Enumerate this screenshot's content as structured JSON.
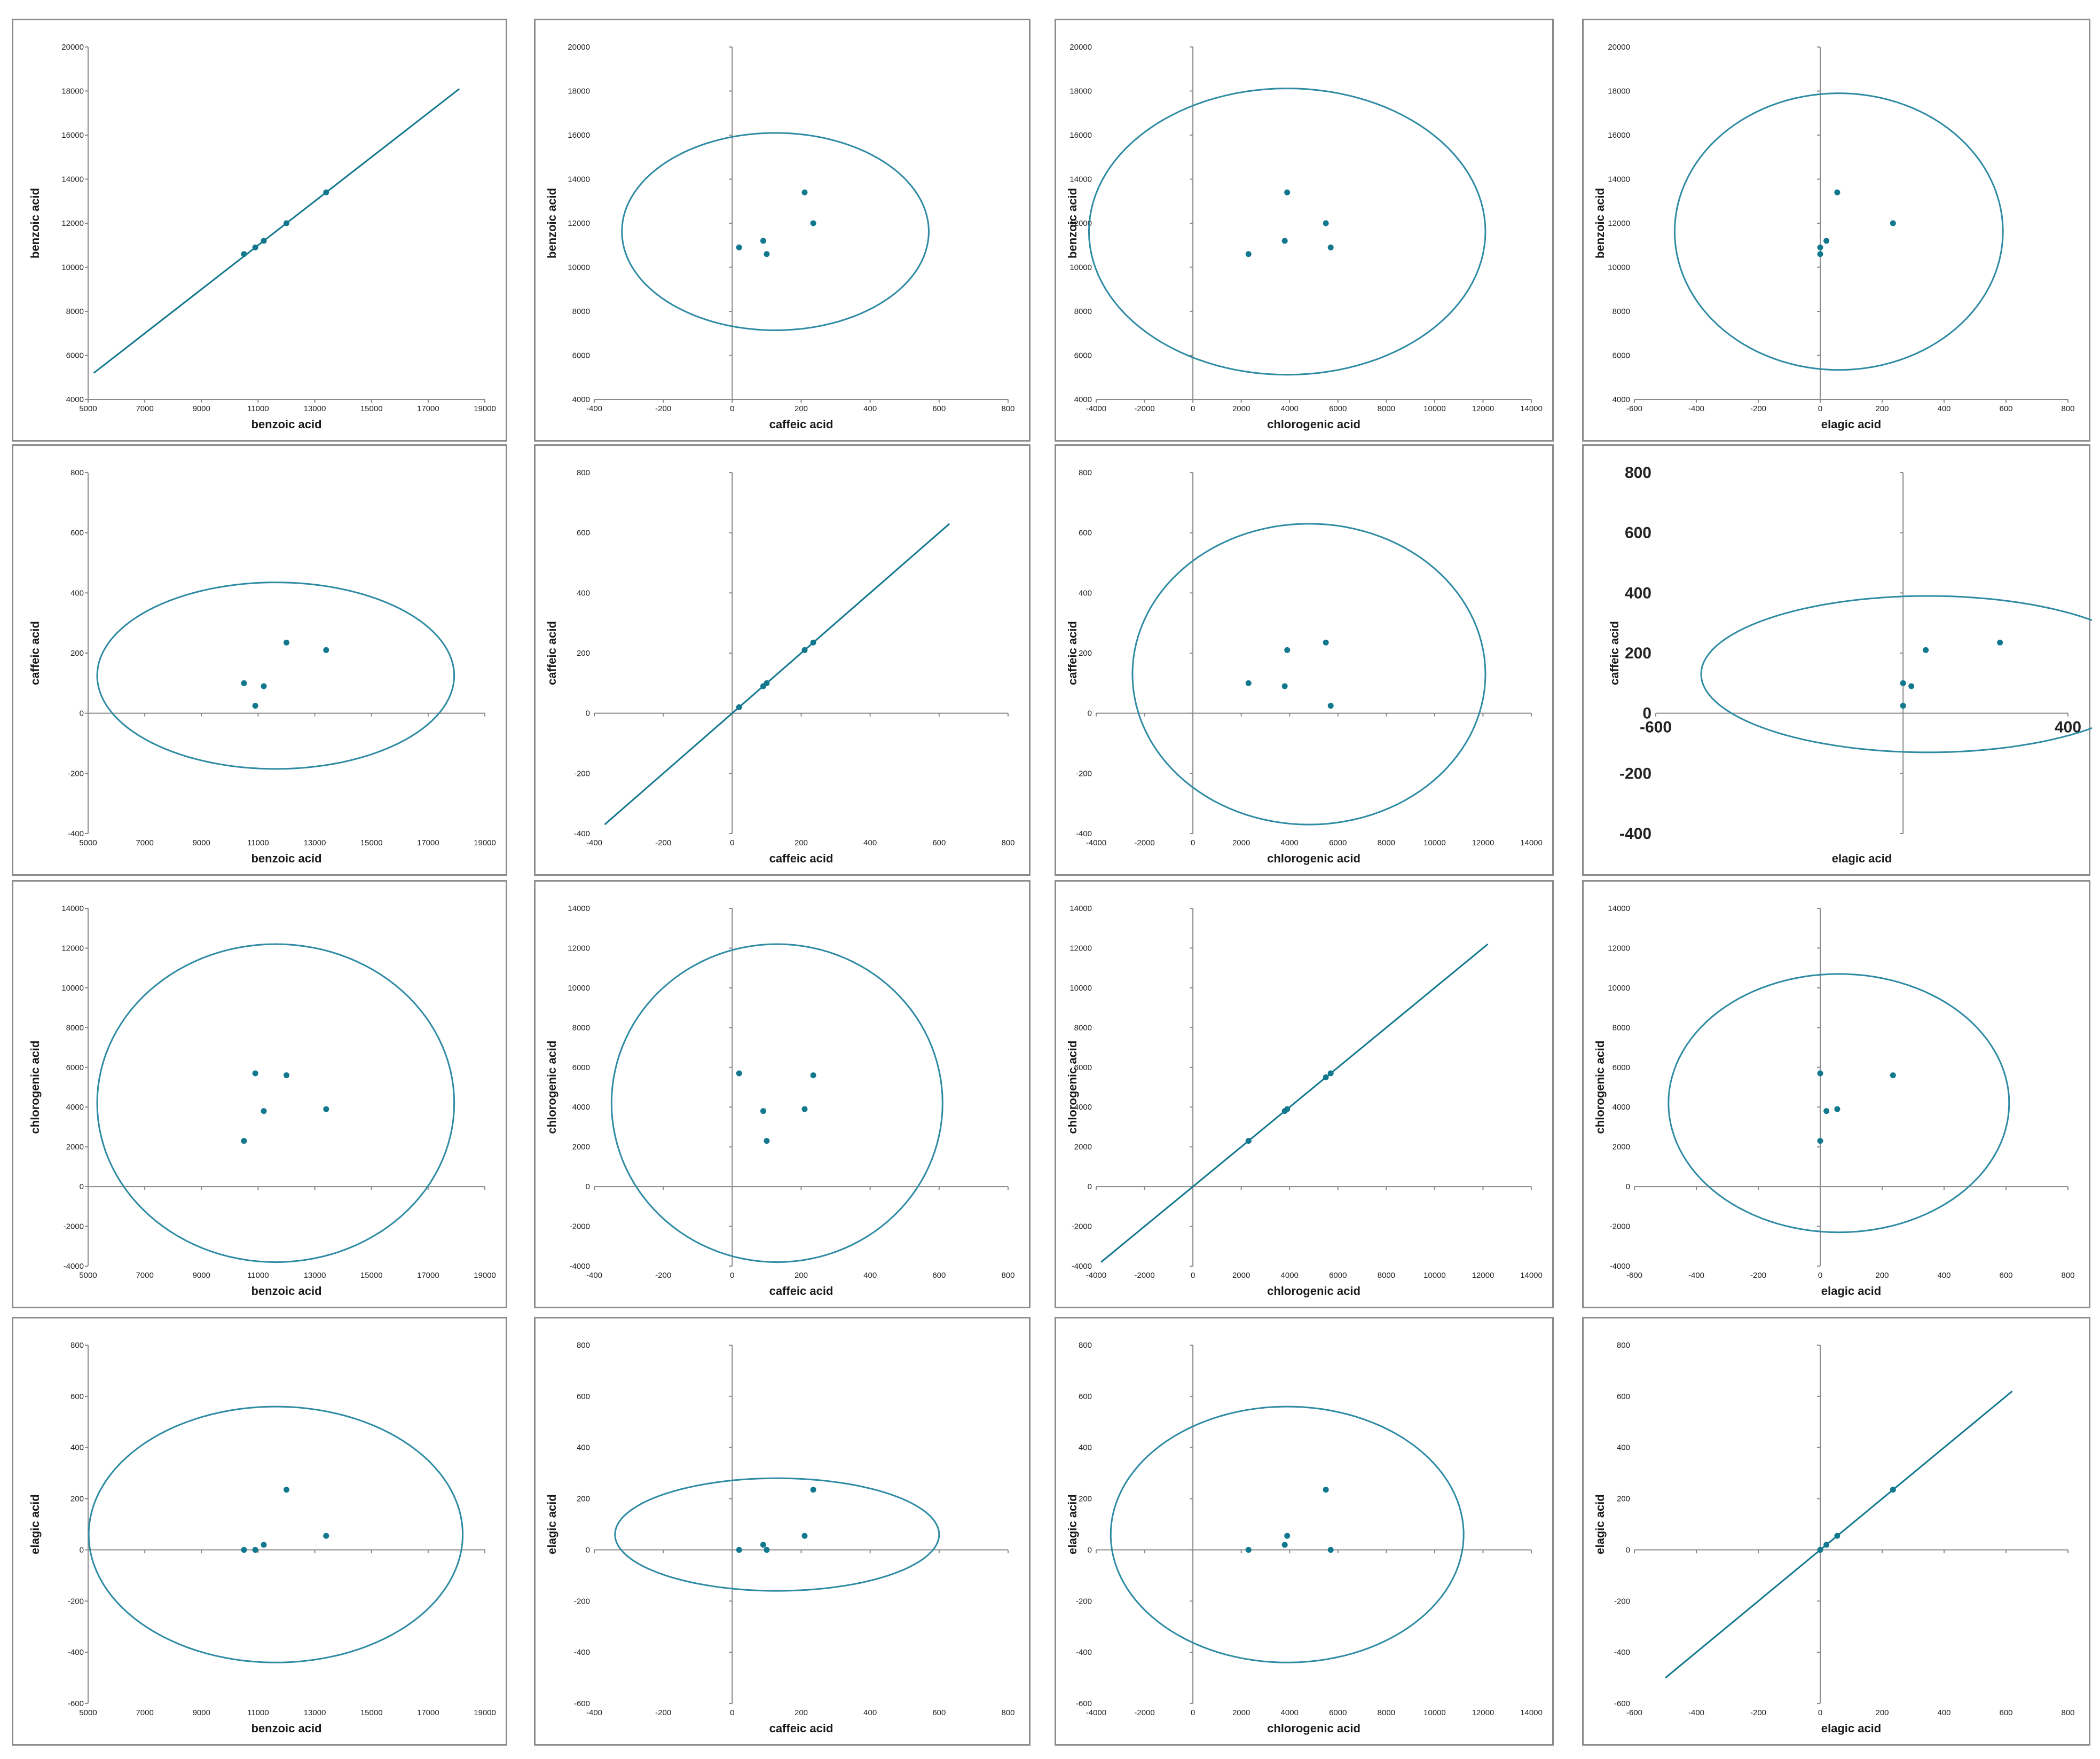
{
  "colors": {
    "ellipse": "#2e8ba3",
    "point": "#12788e",
    "axis": "#8a8a8a",
    "panel_border": "#8c8c8c",
    "text": "#222222"
  },
  "chart_data": [
    {
      "type": "scatter",
      "xlabel": "benzoic acid",
      "ylabel": "benzoic acid",
      "xlim": [
        5000,
        19000
      ],
      "ylim": [
        4000,
        20000
      ],
      "xticks": [
        5000,
        7000,
        9000,
        11000,
        13000,
        15000,
        17000,
        19000
      ],
      "yticks": [
        4000,
        6000,
        8000,
        10000,
        12000,
        14000,
        16000,
        18000,
        20000
      ],
      "points": [
        [
          10500,
          10600
        ],
        [
          10900,
          10900
        ],
        [
          11200,
          11200
        ],
        [
          12000,
          12000
        ],
        [
          13400,
          13400
        ]
      ],
      "diag_line": [
        [
          5200,
          5200
        ],
        [
          18100,
          18100
        ]
      ]
    },
    {
      "type": "scatter",
      "xlabel": "caffeic acid",
      "ylabel": "benzoic acid",
      "xlim": [
        -400,
        800
      ],
      "ylim": [
        4000,
        20000
      ],
      "xticks": [
        -400,
        -200,
        0,
        200,
        400,
        600,
        800
      ],
      "yticks": [
        4000,
        6000,
        8000,
        10000,
        12000,
        14000,
        16000,
        18000,
        20000
      ],
      "points": [
        [
          20,
          10900
        ],
        [
          90,
          11200
        ],
        [
          100,
          10600
        ],
        [
          210,
          13400
        ],
        [
          235,
          12000
        ]
      ],
      "ellipse": {
        "cx": 125,
        "cy": 11620,
        "rx": 445,
        "ry": 4480,
        "rot": -45.4
      }
    },
    {
      "type": "scatter",
      "xlabel": "chlorogenic acid",
      "ylabel": "benzoic acid",
      "xlim": [
        -4000,
        14000
      ],
      "ylim": [
        4000,
        20000
      ],
      "xticks": [
        -4000,
        -2000,
        0,
        2000,
        4000,
        6000,
        8000,
        10000,
        12000,
        14000
      ],
      "yticks": [
        4000,
        6000,
        8000,
        10000,
        12000,
        14000,
        16000,
        18000,
        20000
      ],
      "points": [
        [
          2300,
          10600
        ],
        [
          3800,
          11200
        ],
        [
          3900,
          13400
        ],
        [
          5500,
          12000
        ],
        [
          5700,
          10900
        ]
      ],
      "ellipse": {
        "cx": 3900,
        "cy": 11620,
        "rx": 8200,
        "ry": 6500,
        "rot": 0
      }
    },
    {
      "type": "scatter",
      "xlabel": "elagic acid",
      "ylabel": "benzoic acid",
      "xlim": [
        -600,
        800
      ],
      "ylim": [
        4000,
        20000
      ],
      "xticks": [
        -600,
        -400,
        -200,
        0,
        200,
        400,
        600,
        800
      ],
      "yticks": [
        4000,
        6000,
        8000,
        10000,
        12000,
        14000,
        16000,
        18000,
        20000
      ],
      "points": [
        [
          0,
          10600
        ],
        [
          0,
          10900
        ],
        [
          20,
          11200
        ],
        [
          55,
          13400
        ],
        [
          235,
          12000
        ]
      ],
      "ellipse": {
        "cx": 60,
        "cy": 11620,
        "rx": 530,
        "ry": 6280,
        "rot": -42.5
      }
    },
    {
      "type": "scatter",
      "xlabel": "benzoic acid",
      "ylabel": "caffeic acid",
      "xlim": [
        5000,
        19000
      ],
      "ylim": [
        -400,
        800
      ],
      "xticks": [
        5000,
        7000,
        9000,
        11000,
        13000,
        15000,
        17000,
        19000
      ],
      "yticks": [
        -400,
        -200,
        0,
        200,
        400,
        600,
        800
      ],
      "points": [
        [
          10500,
          100
        ],
        [
          10900,
          25
        ],
        [
          11200,
          90
        ],
        [
          12000,
          235
        ],
        [
          13400,
          210
        ]
      ],
      "ellipse": {
        "cx": 11620,
        "cy": 125,
        "rx": 6300,
        "ry": 310,
        "rot": -40
      }
    },
    {
      "type": "scatter",
      "xlabel": "caffeic acid",
      "ylabel": "caffeic acid",
      "xlim": [
        -400,
        800
      ],
      "ylim": [
        -400,
        800
      ],
      "xticks": [
        -400,
        -200,
        0,
        200,
        400,
        600,
        800
      ],
      "yticks": [
        -400,
        -200,
        0,
        200,
        400,
        600,
        800
      ],
      "points": [
        [
          20,
          20
        ],
        [
          90,
          90
        ],
        [
          100,
          100
        ],
        [
          210,
          210
        ],
        [
          235,
          235
        ]
      ],
      "diag_line": [
        [
          -370,
          -370
        ],
        [
          630,
          630
        ]
      ]
    },
    {
      "type": "scatter",
      "xlabel": "chlorogenic acid",
      "ylabel": "caffeic acid",
      "xlim": [
        -4000,
        14000
      ],
      "ylim": [
        -400,
        800
      ],
      "xticks": [
        -4000,
        -2000,
        0,
        2000,
        4000,
        6000,
        8000,
        10000,
        12000,
        14000
      ],
      "yticks": [
        -400,
        -200,
        0,
        200,
        400,
        600,
        800
      ],
      "points": [
        [
          2300,
          100
        ],
        [
          3800,
          90
        ],
        [
          3900,
          210
        ],
        [
          5500,
          235
        ],
        [
          5700,
          25
        ]
      ],
      "ellipse": {
        "cx": 4800,
        "cy": 130,
        "rx": 7300,
        "ry": 500,
        "rot": 0
      }
    },
    {
      "type": "scatter",
      "xlabel": "elagic acid",
      "ylabel": "caffeic acid",
      "xlim": [
        -600,
        400
      ],
      "ylim": [
        -400,
        800
      ],
      "xticks": [
        -600,
        400
      ],
      "yticks": [
        -400,
        -200,
        0,
        200,
        400,
        600,
        800
      ],
      "large_ticks": true,
      "points": [
        [
          0,
          25
        ],
        [
          0,
          100
        ],
        [
          20,
          90
        ],
        [
          55,
          210
        ],
        [
          235,
          235
        ]
      ],
      "ellipse": {
        "cx": 60,
        "cy": 130,
        "rx": 550,
        "ry": 260,
        "rot": -45
      }
    },
    {
      "type": "scatter",
      "xlabel": "benzoic acid",
      "ylabel": "chlorogenic acid",
      "xlim": [
        5000,
        19000
      ],
      "ylim": [
        -4000,
        14000
      ],
      "xticks": [
        5000,
        7000,
        9000,
        11000,
        13000,
        15000,
        17000,
        19000
      ],
      "yticks": [
        -4000,
        -2000,
        0,
        2000,
        4000,
        6000,
        8000,
        10000,
        12000,
        14000
      ],
      "points": [
        [
          10500,
          2300
        ],
        [
          10900,
          5700
        ],
        [
          11200,
          3800
        ],
        [
          12000,
          5600
        ],
        [
          13400,
          3900
        ]
      ],
      "ellipse": {
        "cx": 11620,
        "cy": 4200,
        "rx": 6300,
        "ry": 8000,
        "rot": 0
      }
    },
    {
      "type": "scatter",
      "xlabel": "caffeic acid",
      "ylabel": "chlorogenic acid",
      "xlim": [
        -400,
        800
      ],
      "ylim": [
        -4000,
        14000
      ],
      "xticks": [
        -400,
        -200,
        0,
        200,
        400,
        600,
        800
      ],
      "yticks": [
        -4000,
        -2000,
        0,
        2000,
        4000,
        6000,
        8000,
        10000,
        12000,
        14000
      ],
      "points": [
        [
          20,
          5700
        ],
        [
          90,
          3800
        ],
        [
          100,
          2300
        ],
        [
          210,
          3900
        ],
        [
          235,
          5600
        ]
      ],
      "ellipse": {
        "cx": 130,
        "cy": 4200,
        "rx": 480,
        "ry": 8000,
        "rot": 0
      }
    },
    {
      "type": "scatter",
      "xlabel": "chlorogenic acid",
      "ylabel": "chlorogenic acid",
      "xlim": [
        -4000,
        14000
      ],
      "ylim": [
        -4000,
        14000
      ],
      "xticks": [
        -4000,
        -2000,
        0,
        2000,
        4000,
        6000,
        8000,
        10000,
        12000,
        14000
      ],
      "yticks": [
        -4000,
        -2000,
        0,
        2000,
        4000,
        6000,
        8000,
        10000,
        12000,
        14000
      ],
      "points": [
        [
          2300,
          2300
        ],
        [
          3800,
          3800
        ],
        [
          3900,
          3900
        ],
        [
          5500,
          5500
        ],
        [
          5700,
          5700
        ]
      ],
      "diag_line": [
        [
          -3800,
          -3800
        ],
        [
          12200,
          12200
        ]
      ]
    },
    {
      "type": "scatter",
      "xlabel": "elagic acid",
      "ylabel": "chlorogenic acid",
      "xlim": [
        -600,
        800
      ],
      "ylim": [
        -4000,
        14000
      ],
      "xticks": [
        -600,
        -400,
        -200,
        0,
        200,
        400,
        600,
        800
      ],
      "yticks": [
        -4000,
        -2000,
        0,
        2000,
        4000,
        6000,
        8000,
        10000,
        12000,
        14000
      ],
      "points": [
        [
          0,
          2300
        ],
        [
          0,
          5700
        ],
        [
          20,
          3800
        ],
        [
          55,
          3900
        ],
        [
          235,
          5600
        ]
      ],
      "ellipse": {
        "cx": 60,
        "cy": 4200,
        "rx": 550,
        "ry": 6500,
        "rot": -45
      }
    },
    {
      "type": "scatter",
      "xlabel": "benzoic acid",
      "ylabel": "elagic acid",
      "xlim": [
        5000,
        19000
      ],
      "ylim": [
        -600,
        800
      ],
      "xticks": [
        5000,
        7000,
        9000,
        11000,
        13000,
        15000,
        17000,
        19000
      ],
      "yticks": [
        -600,
        -400,
        -200,
        0,
        200,
        400,
        600,
        800
      ],
      "points": [
        [
          10500,
          0
        ],
        [
          10900,
          0
        ],
        [
          11200,
          20
        ],
        [
          12000,
          235
        ],
        [
          13400,
          55
        ]
      ],
      "ellipse": {
        "cx": 11620,
        "cy": 60,
        "rx": 6600,
        "ry": 500,
        "rot": -35
      }
    },
    {
      "type": "scatter",
      "xlabel": "caffeic acid",
      "ylabel": "elagic acid",
      "xlim": [
        -400,
        800
      ],
      "ylim": [
        -600,
        800
      ],
      "xticks": [
        -400,
        -200,
        0,
        200,
        400,
        600,
        800
      ],
      "yticks": [
        -600,
        -400,
        -200,
        0,
        200,
        400,
        600,
        800
      ],
      "points": [
        [
          20,
          0
        ],
        [
          90,
          20
        ],
        [
          100,
          0
        ],
        [
          210,
          55
        ],
        [
          235,
          235
        ]
      ],
      "ellipse": {
        "cx": 130,
        "cy": 60,
        "rx": 470,
        "ry": 220,
        "rot": -40
      }
    },
    {
      "type": "scatter",
      "xlabel": "chlorogenic acid",
      "ylabel": "elagic acid",
      "xlim": [
        -4000,
        14000
      ],
      "ylim": [
        -600,
        800
      ],
      "xticks": [
        -4000,
        -2000,
        0,
        2000,
        4000,
        6000,
        8000,
        10000,
        12000,
        14000
      ],
      "yticks": [
        -600,
        -400,
        -200,
        0,
        200,
        400,
        600,
        800
      ],
      "points": [
        [
          2300,
          0
        ],
        [
          3800,
          20
        ],
        [
          3900,
          55
        ],
        [
          5500,
          235
        ],
        [
          5700,
          0
        ]
      ],
      "ellipse": {
        "cx": 3900,
        "cy": 60,
        "rx": 7300,
        "ry": 500,
        "rot": -25
      }
    },
    {
      "type": "scatter",
      "xlabel": "elagic acid",
      "ylabel": "elagic acid",
      "xlim": [
        -600,
        800
      ],
      "ylim": [
        -600,
        800
      ],
      "xticks": [
        -600,
        -400,
        -200,
        0,
        200,
        400,
        600,
        800
      ],
      "yticks": [
        -600,
        -400,
        -200,
        0,
        200,
        400,
        600,
        800
      ],
      "points": [
        [
          0,
          0
        ],
        [
          20,
          20
        ],
        [
          55,
          55
        ],
        [
          235,
          235
        ]
      ],
      "diag_line": [
        [
          -500,
          -500
        ],
        [
          620,
          620
        ]
      ]
    }
  ]
}
